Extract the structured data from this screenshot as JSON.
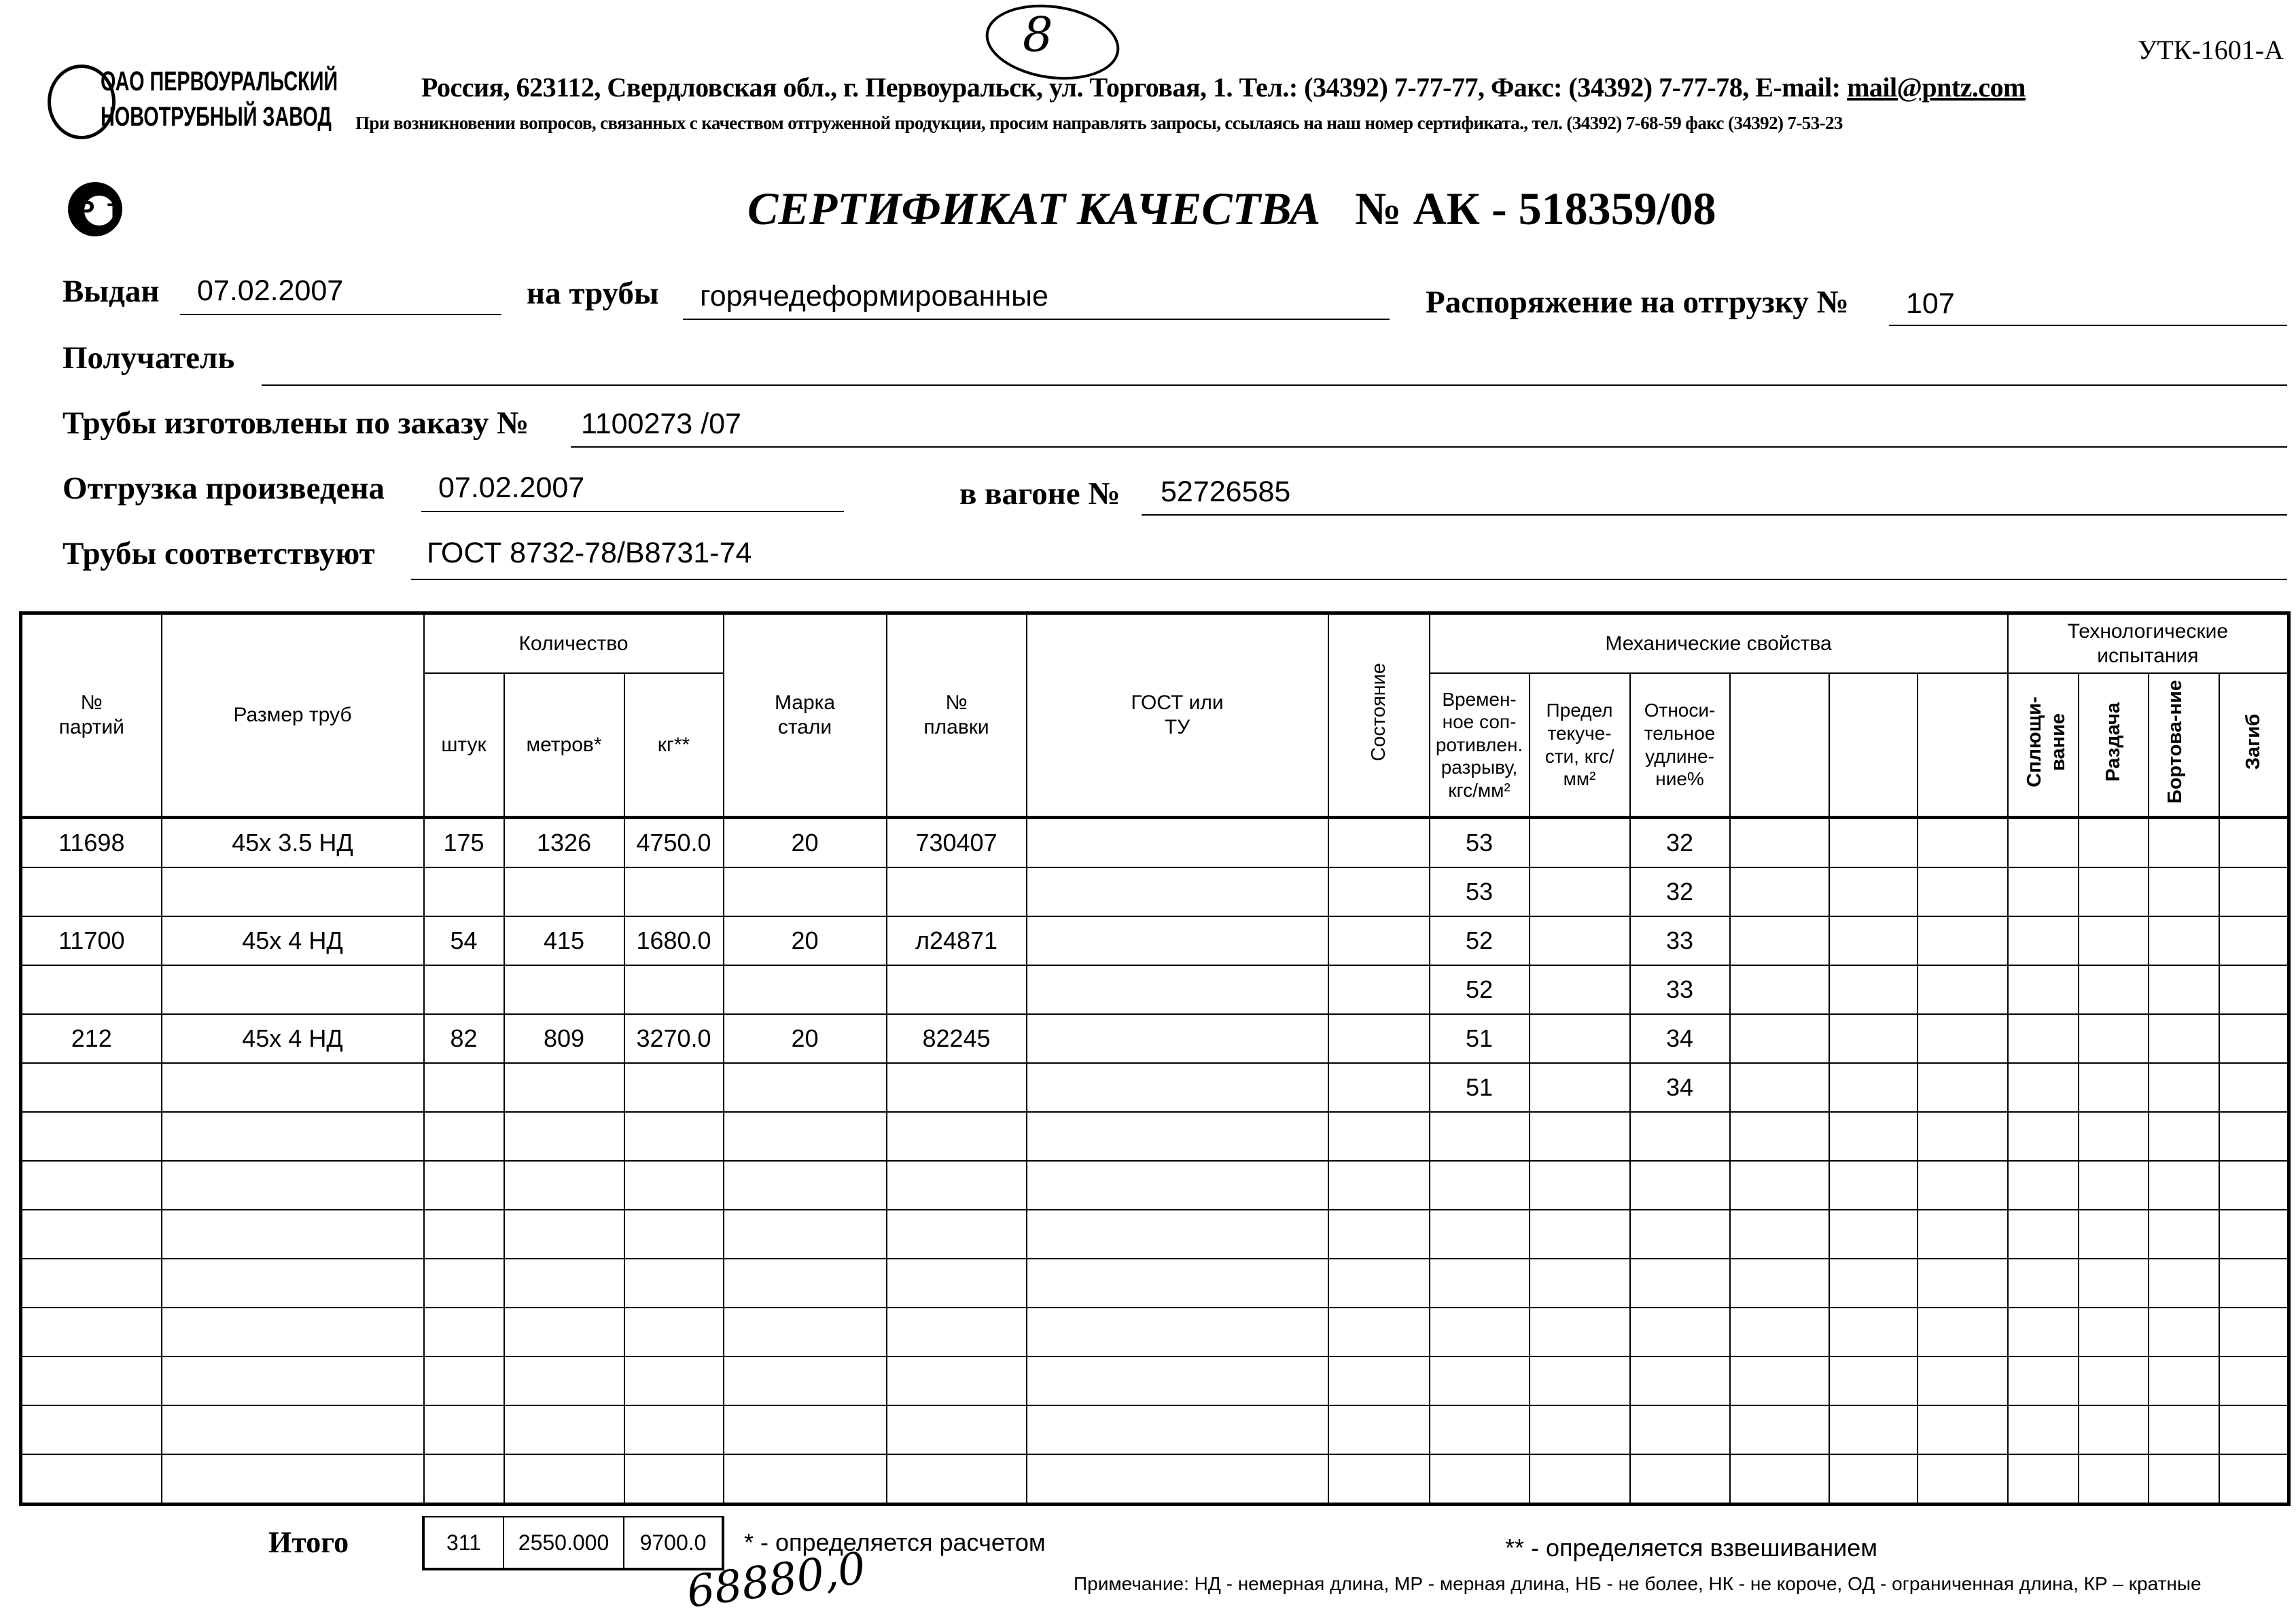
{
  "form_code": "УТК-1601-А",
  "page_mark": "8",
  "company": {
    "name_line1": "ОАО ПЕРВОУРАЛЬСКИЙ",
    "name_line2": "НОВОТРУБНЫЙ ЗАВОД",
    "address": "Россия, 623112, Свердловская обл., г. Первоуральск, ул. Торговая, 1. Тел.: (34392) 7-77-77, Факс: (34392) 7-77-78,  E-mail: ",
    "email": "mail@pntz.com",
    "notice": "При возникновении вопросов, связанных с качеством отгруженной продукции, просим направлять запросы, ссылаясь на наш номер сертификата., тел. (34392) 7-68-59 факс (34392) 7-53-23",
    "cert_logo": "РСТ"
  },
  "title": {
    "text": "СЕРТИФИКАТ КАЧЕСТВА",
    "number": "№  АК -  518359/08"
  },
  "fields": {
    "issued_label": "Выдан",
    "issued": "07.02.2007",
    "pipes_label": "на трубы",
    "pipes": "горячедеформированные",
    "order_label": "Распоряжение на отгрузку №",
    "order": "107",
    "recipient_label": "Получатель",
    "recipient": "",
    "made_label": "Трубы изготовлены по заказу №",
    "made": "1100273  /07",
    "shipped_label": "Отгрузка произведена",
    "shipped": "07.02.2007",
    "wagon_label": "в вагоне №",
    "wagon": "52726585",
    "conform_label": "Трубы соответствуют",
    "conform": "ГОСТ 8732-78/В8731-74"
  },
  "table": {
    "headers": {
      "batch": "№ партий",
      "size": "Размер труб",
      "quantity": "Количество",
      "pcs": "штук",
      "meters": "метров*",
      "kg": "кг**",
      "steel": "Марка стали",
      "heat": "№ плавки",
      "gost": "ГОСТ или ТУ",
      "state": "Состояние",
      "mech": "Механические свойства",
      "tensile": "Времен-ное соп-ротивлен. разрыву, кгс/мм²",
      "yield": "Предел текуче-сти, кгс/мм²",
      "elong": "Относи-тельное удлине-ние%",
      "tech": "Технологические испытания",
      "flat": "Сплющи-вание",
      "expand": "Раздача",
      "flange": "Бортова-ние",
      "bend": "Загиб"
    },
    "rows": [
      {
        "batch": "11698",
        "size": "45х 3.5 НД",
        "pcs": "175",
        "meters": "1326",
        "kg": "4750.0",
        "steel": "20",
        "heat": "730407",
        "tensile": "53",
        "elong": "32"
      },
      {
        "tensile": "53",
        "elong": "32"
      },
      {
        "batch": "11700",
        "size": "45х 4 НД",
        "pcs": "54",
        "meters": "415",
        "kg": "1680.0",
        "steel": "20",
        "heat": "л24871",
        "tensile": "52",
        "elong": "33"
      },
      {
        "tensile": "52",
        "elong": "33"
      },
      {
        "batch": "212",
        "size": "45х 4 НД",
        "pcs": "82",
        "meters": "809",
        "kg": "3270.0",
        "steel": "20",
        "heat": "82245",
        "tensile": "51",
        "elong": "34"
      },
      {
        "tensile": "51",
        "elong": "34"
      }
    ],
    "total_label": "Итого",
    "total": {
      "pcs": "311",
      "meters": "2550.000",
      "kg": "9700.0"
    }
  },
  "footnotes": {
    "star1": "* - определяется расчетом",
    "star2": "** - определяется взвешиванием",
    "note": "Примечание: НД - немерная длина, МР - мерная длина, НБ - не более, НК - не короче, ОД - ограниченная длина, КР – кратные"
  },
  "handwritten": "68880,0"
}
